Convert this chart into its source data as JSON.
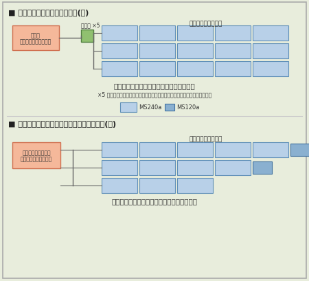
{
  "bg_color": "#e8eddc",
  "border_color": "#aaaaaa",
  "title1": "■ 集中型パワーコンディショナ(例)",
  "title2": "■ マルチストリング型パワーコンディショナ(例)",
  "solar_label": "太陽電池モジュール",
  "junction_label": "接続笱 ×5",
  "pcs1_line1": "集中型",
  "pcs1_line2": "パワーコンディショナ",
  "pcs2_line1": "マルチストリング型",
  "pcs2_line2": "パワーコンディショナ",
  "note1_bold": "太陽電池の枚数を揃える必要があります。",
  "note1_small": "×5 屋外用集中型パワーコンディショナは接続笱が本体に内蔵されています。",
  "note2_bold": "太陽電池の枚数を揃える必要はありません。",
  "legend_label1": "MS240a",
  "legend_label2": "MS120a",
  "solar_blue_light": "#b8d0e8",
  "solar_blue_mid": "#8ab0d0",
  "pcs_fill": "#f5b89a",
  "pcs_edge": "#d07050",
  "junc_fill": "#90c070",
  "junc_edge": "#508040",
  "line_color": "#666666",
  "text_color": "#333333",
  "title_color": "#222222"
}
